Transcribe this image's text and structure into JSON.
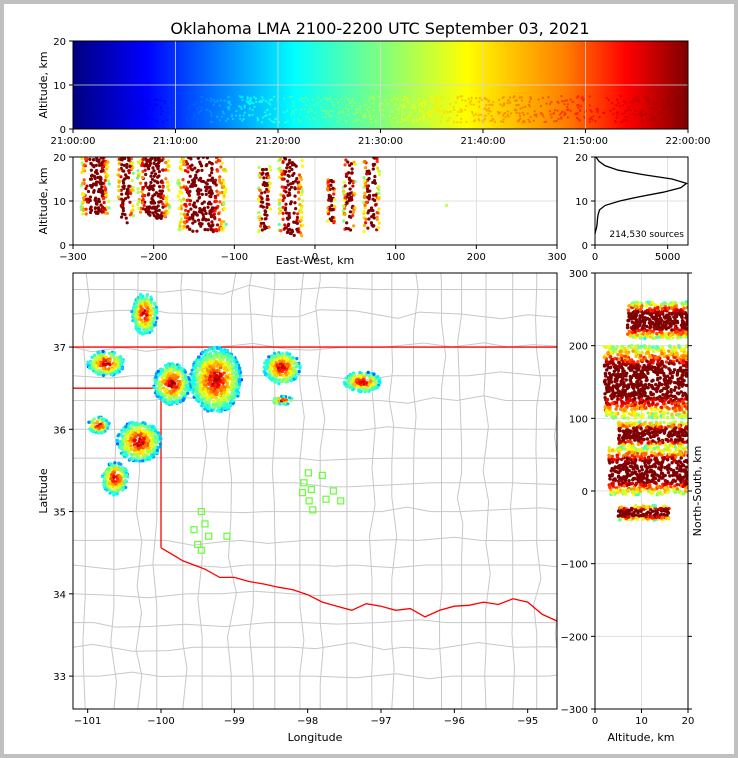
{
  "chart_data": {
    "type": "scatter",
    "title": "Oklahoma LMA 2100-2200 UTC September 03, 2021",
    "source_count_label": "214,530 sources",
    "colormap": [
      "#00007f",
      "#0000ff",
      "#00ffff",
      "#7fff7f",
      "#ffff00",
      "#ff7f00",
      "#ff0000",
      "#7f0000"
    ],
    "state_border_color": "#ff0000",
    "county_line_color": "#c8c8c8",
    "station_color": "#66ff33",
    "panels": {
      "time_altitude": {
        "xlabel": "",
        "ylabel": "Altitude, km",
        "xlim": [
          "21:00:00",
          "22:00:00"
        ],
        "ylim": [
          0,
          20
        ],
        "xticks": [
          "21:00:00",
          "21:10:00",
          "21:20:00",
          "21:30:00",
          "21:40:00",
          "21:50:00",
          "22:00:00"
        ],
        "yticks": [
          "0",
          "10",
          "20"
        ]
      },
      "ew_altitude": {
        "xlabel": "East-West, km",
        "ylabel": "Altitude, km",
        "xlim": [
          -300,
          300
        ],
        "ylim": [
          0,
          20
        ],
        "xticks": [
          "−300",
          "−200",
          "−100",
          "0",
          "100",
          "200",
          "300"
        ],
        "yticks": [
          "0",
          "10",
          "20"
        ],
        "clusters": [
          {
            "x": [
              -290,
              -255
            ],
            "z": [
              7,
              20
            ]
          },
          {
            "x": [
              -245,
              -225
            ],
            "z": [
              5,
              20
            ]
          },
          {
            "x": [
              -220,
              -180
            ],
            "z": [
              6,
              20
            ]
          },
          {
            "x": [
              -170,
              -110
            ],
            "z": [
              3,
              20
            ]
          },
          {
            "x": [
              -70,
              -55
            ],
            "z": [
              3,
              18
            ]
          },
          {
            "x": [
              -45,
              -15
            ],
            "z": [
              2,
              20
            ]
          },
          {
            "x": [
              15,
              25
            ],
            "z": [
              5,
              15
            ]
          },
          {
            "x": [
              35,
              50
            ],
            "z": [
              3,
              20
            ]
          },
          {
            "x": [
              60,
              80
            ],
            "z": [
              3,
              20
            ]
          }
        ]
      },
      "altitude_histogram": {
        "xlabel": "",
        "ylabel": "",
        "xlim": [
          0,
          6400
        ],
        "ylim": [
          0,
          20
        ],
        "xticks": [
          "0",
          "5000"
        ],
        "yticks": [
          "0",
          "10",
          "20"
        ],
        "profile": [
          {
            "alt": 20,
            "count": 60
          },
          {
            "alt": 19,
            "count": 280
          },
          {
            "alt": 18,
            "count": 700
          },
          {
            "alt": 17,
            "count": 1600
          },
          {
            "alt": 16,
            "count": 3300
          },
          {
            "alt": 15,
            "count": 5300
          },
          {
            "alt": 14,
            "count": 6300
          },
          {
            "alt": 13,
            "count": 5900
          },
          {
            "alt": 12,
            "count": 4700
          },
          {
            "alt": 11,
            "count": 3100
          },
          {
            "alt": 10,
            "count": 1700
          },
          {
            "alt": 9,
            "count": 700
          },
          {
            "alt": 8,
            "count": 320
          },
          {
            "alt": 7,
            "count": 220
          },
          {
            "alt": 6,
            "count": 170
          },
          {
            "alt": 5,
            "count": 150
          },
          {
            "alt": 4,
            "count": 110
          },
          {
            "alt": 3,
            "count": 30
          },
          {
            "alt": 2.5,
            "count": 0
          }
        ]
      },
      "plan_view": {
        "xlabel": "Longitude",
        "ylabel": "Latitude",
        "xlim": [
          -101.2,
          -94.6
        ],
        "ylim": [
          32.6,
          37.9
        ],
        "xticks": [
          "−101",
          "−100",
          "−99",
          "−98",
          "−97",
          "−96",
          "−95"
        ],
        "yticks": [
          "33",
          "34",
          "35",
          "36",
          "37"
        ],
        "clusters": [
          {
            "lon": [
              -100.4,
              -100.05
            ],
            "lat": [
              37.15,
              37.65
            ]
          },
          {
            "lon": [
              -101.0,
              -100.5
            ],
            "lat": [
              36.65,
              36.95
            ]
          },
          {
            "lon": [
              -100.1,
              -99.6
            ],
            "lat": [
              36.3,
              36.8
            ]
          },
          {
            "lon": [
              -99.6,
              -98.9
            ],
            "lat": [
              36.2,
              37.0
            ]
          },
          {
            "lon": [
              -98.6,
              -98.1
            ],
            "lat": [
              36.55,
              36.95
            ]
          },
          {
            "lon": [
              -97.5,
              -97.0
            ],
            "lat": [
              36.45,
              36.7
            ]
          },
          {
            "lon": [
              -101.0,
              -100.7
            ],
            "lat": [
              35.95,
              36.15
            ]
          },
          {
            "lon": [
              -100.6,
              -100.0
            ],
            "lat": [
              35.6,
              36.1
            ]
          },
          {
            "lon": [
              -100.8,
              -100.45
            ],
            "lat": [
              35.2,
              35.6
            ]
          },
          {
            "lon": [
              -98.5,
              -98.2
            ],
            "lat": [
              36.3,
              36.4
            ]
          }
        ],
        "stations": [
          [
            -99.45,
            35.0
          ],
          [
            -99.55,
            34.78
          ],
          [
            -99.4,
            34.85
          ],
          [
            -99.35,
            34.7
          ],
          [
            -99.5,
            34.6
          ],
          [
            -99.45,
            34.53
          ],
          [
            -99.1,
            34.7
          ],
          [
            -97.99,
            35.47
          ],
          [
            -97.8,
            35.44
          ],
          [
            -98.05,
            35.35
          ],
          [
            -97.95,
            35.27
          ],
          [
            -98.07,
            35.23
          ],
          [
            -97.65,
            35.25
          ],
          [
            -97.98,
            35.13
          ],
          [
            -97.75,
            35.15
          ],
          [
            -97.55,
            35.13
          ],
          [
            -97.93,
            35.02
          ]
        ]
      },
      "ns_altitude": {
        "xlabel": "Altitude, km",
        "ylabel": "North-South, km",
        "xlim": [
          0,
          20
        ],
        "ylim": [
          -300,
          300
        ],
        "xticks": [
          "0",
          "10",
          "20"
        ],
        "yticks": [
          "−300",
          "−200",
          "−100",
          "0",
          "100",
          "200",
          "300"
        ],
        "clusters": [
          {
            "y": [
              210,
              260
            ],
            "z": [
              7,
              20
            ]
          },
          {
            "y": [
              100,
              200
            ],
            "z": [
              2,
              20
            ]
          },
          {
            "y": [
              60,
              95
            ],
            "z": [
              5,
              20
            ]
          },
          {
            "y": [
              -5,
              60
            ],
            "z": [
              3,
              20
            ]
          },
          {
            "y": [
              -40,
              -20
            ],
            "z": [
              5,
              16
            ]
          }
        ]
      }
    }
  }
}
